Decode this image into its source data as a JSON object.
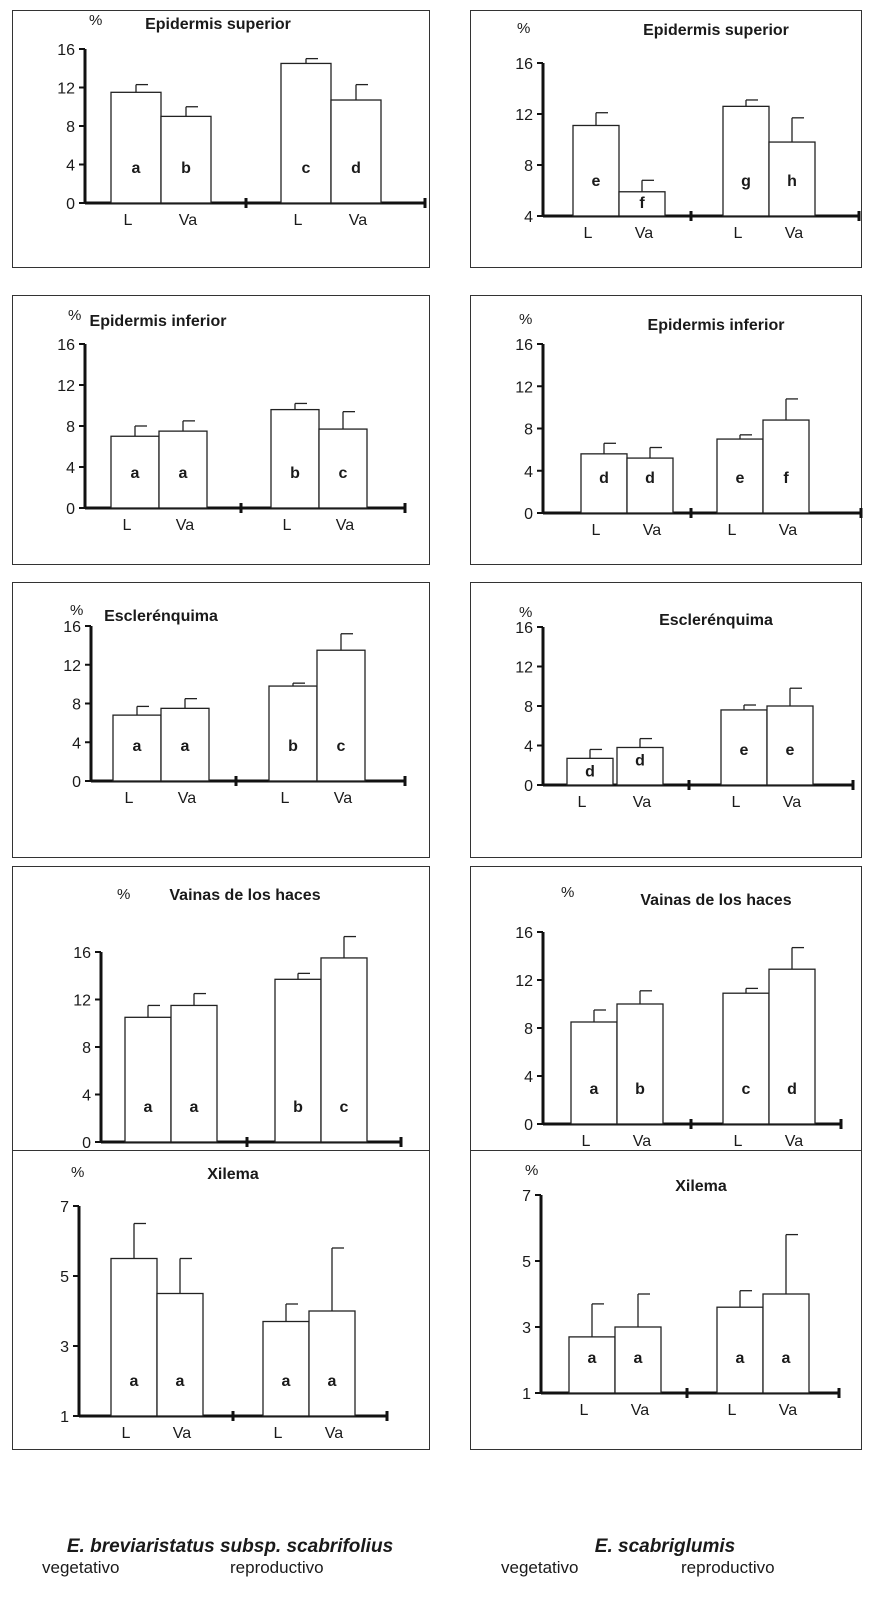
{
  "chart_data": [
    {
      "type": "bar",
      "title": "Epidermis superior",
      "ylabel": "%",
      "ylim": [
        0,
        16
      ],
      "yticks": [
        0,
        4,
        8,
        12,
        16
      ],
      "categories": [
        "L",
        "Va",
        "L",
        "Va"
      ],
      "values": [
        11.5,
        9.0,
        14.5,
        10.7
      ],
      "errors": [
        0.8,
        1.0,
        0.5,
        1.6
      ],
      "letters": [
        "a",
        "b",
        "c",
        "d"
      ],
      "group_labels": [
        "vegetativo",
        "reproductivo"
      ],
      "species": "E. breviaristatus subsp. scabrifolius"
    },
    {
      "type": "bar",
      "title": "Epidermis superior",
      "ylabel": "%",
      "ylim": [
        4,
        16
      ],
      "yticks": [
        4,
        8,
        12,
        16
      ],
      "categories": [
        "L",
        "Va",
        "L",
        "Va"
      ],
      "values": [
        11.1,
        5.9,
        12.6,
        9.8
      ],
      "errors": [
        1.0,
        0.9,
        0.5,
        1.9
      ],
      "letters": [
        "e",
        "f",
        "g",
        "h"
      ],
      "group_labels": [
        "vegetativo",
        "reproductivo"
      ],
      "species": "E. scabriglumis"
    },
    {
      "type": "bar",
      "title": "Epidermis inferior",
      "ylabel": "%",
      "ylim": [
        0,
        16
      ],
      "yticks": [
        0,
        4,
        8,
        12,
        16
      ],
      "categories": [
        "L",
        "Va",
        "L",
        "Va"
      ],
      "values": [
        7.0,
        7.5,
        9.6,
        7.7
      ],
      "errors": [
        1.0,
        1.0,
        0.6,
        1.7
      ],
      "letters": [
        "a",
        "a",
        "b",
        "c"
      ],
      "group_labels": [
        "vegetativo",
        "reproductivo"
      ],
      "species": "E. breviaristatus subsp. scabrifolius"
    },
    {
      "type": "bar",
      "title": "Epidermis inferior",
      "ylabel": "%",
      "ylim": [
        0,
        16
      ],
      "yticks": [
        0,
        4,
        8,
        12,
        16
      ],
      "categories": [
        "L",
        "Va",
        "L",
        "Va"
      ],
      "values": [
        5.6,
        5.2,
        7.0,
        8.8
      ],
      "errors": [
        1.0,
        1.0,
        0.4,
        2.0
      ],
      "letters": [
        "d",
        "d",
        "e",
        "f"
      ],
      "group_labels": [
        "vegetativo",
        "reproductivo"
      ],
      "species": "E. scabriglumis"
    },
    {
      "type": "bar",
      "title": "Esclerénquima",
      "ylabel": "%",
      "ylim": [
        0,
        16
      ],
      "yticks": [
        0,
        4,
        8,
        12,
        16
      ],
      "categories": [
        "L",
        "Va",
        "L",
        "Va"
      ],
      "values": [
        6.8,
        7.5,
        9.8,
        13.5
      ],
      "errors": [
        0.9,
        1.0,
        0.3,
        1.7
      ],
      "letters": [
        "a",
        "a",
        "b",
        "c"
      ],
      "group_labels": [
        "vegetativo",
        "reproductivo"
      ],
      "species": "E. breviaristatus subsp. scabrifolius"
    },
    {
      "type": "bar",
      "title": "Esclerénquima",
      "ylabel": "%",
      "ylim": [
        0,
        16
      ],
      "yticks": [
        0,
        4,
        8,
        12,
        16
      ],
      "categories": [
        "L",
        "Va",
        "L",
        "Va"
      ],
      "values": [
        2.7,
        3.8,
        7.6,
        8.0
      ],
      "errors": [
        0.9,
        0.9,
        0.5,
        1.8
      ],
      "letters": [
        "d",
        "d",
        "e",
        "e"
      ],
      "group_labels": [
        "vegetativo",
        "reproductivo"
      ],
      "species": "E. scabriglumis"
    },
    {
      "type": "bar",
      "title": "Vainas de los haces",
      "ylabel": "%",
      "ylim": [
        0,
        16
      ],
      "yticks": [
        0,
        4,
        8,
        12,
        16
      ],
      "categories": [
        "L",
        "Va",
        "L",
        "Va"
      ],
      "values": [
        10.5,
        11.5,
        13.7,
        15.5
      ],
      "errors": [
        1.0,
        1.0,
        0.5,
        1.8
      ],
      "letters": [
        "a",
        "a",
        "b",
        "c"
      ],
      "group_labels": [
        "vegetativo",
        "reproductivo"
      ],
      "species": "E. breviaristatus subsp. scabrifolius"
    },
    {
      "type": "bar",
      "title": "Vainas de los haces",
      "ylabel": "%",
      "ylim": [
        0,
        16
      ],
      "yticks": [
        0,
        4,
        8,
        12,
        16
      ],
      "categories": [
        "L",
        "Va",
        "L",
        "Va"
      ],
      "values": [
        8.5,
        10.0,
        10.9,
        12.9
      ],
      "errors": [
        1.0,
        1.1,
        0.4,
        1.8
      ],
      "letters": [
        "a",
        "b",
        "c",
        "d"
      ],
      "group_labels": [
        "vegetativo",
        "reproductivo"
      ],
      "species": "E. scabriglumis"
    },
    {
      "type": "bar",
      "title": "Xilema",
      "ylabel": "%",
      "ylim": [
        1,
        7
      ],
      "yticks": [
        1,
        3,
        5,
        7
      ],
      "categories": [
        "L",
        "Va",
        "L",
        "Va"
      ],
      "values": [
        5.5,
        4.5,
        3.7,
        4.0
      ],
      "errors": [
        1.0,
        1.0,
        0.5,
        1.8
      ],
      "letters": [
        "a",
        "a",
        "a",
        "a"
      ],
      "group_labels": [
        "vegetativo",
        "reproductivo"
      ],
      "species": "E. breviaristatus subsp. scabrifolius"
    },
    {
      "type": "bar",
      "title": "Xilema",
      "ylabel": "%",
      "ylim": [
        1,
        7
      ],
      "yticks": [
        1,
        3,
        5,
        7
      ],
      "categories": [
        "L",
        "Va",
        "L",
        "Va"
      ],
      "values": [
        2.7,
        3.0,
        3.6,
        4.0
      ],
      "errors": [
        1.0,
        1.0,
        0.5,
        1.8
      ],
      "letters": [
        "a",
        "a",
        "a",
        "a"
      ],
      "group_labels": [
        "vegetativo",
        "reproductivo"
      ],
      "species": "E. scabriglumis"
    }
  ],
  "footer": {
    "left": {
      "species": "E. breviaristatus subsp. scabrifolius",
      "group1": "vegetativo",
      "group2": "reproductivo"
    },
    "right": {
      "species": "E. scabriglumis",
      "group1": "vegetativo",
      "group2": "reproductivo"
    }
  }
}
